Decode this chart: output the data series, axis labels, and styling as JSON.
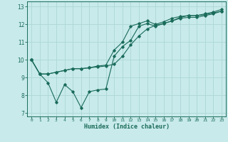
{
  "xlabel": "Humidex (Indice chaleur)",
  "ylabel": "",
  "bg_color": "#c8eaea",
  "line_color": "#1a6b5a",
  "grid_color": "#b0d8d8",
  "xlim": [
    -0.5,
    23.5
  ],
  "ylim": [
    6.8,
    13.3
  ],
  "xticks": [
    0,
    1,
    2,
    3,
    4,
    5,
    6,
    7,
    8,
    9,
    10,
    11,
    12,
    13,
    14,
    15,
    16,
    17,
    18,
    19,
    20,
    21,
    22,
    23
  ],
  "yticks": [
    7,
    8,
    9,
    10,
    11,
    12,
    13
  ],
  "line1_x": [
    0,
    1,
    2,
    3,
    4,
    5,
    6,
    7,
    8,
    9,
    10,
    11,
    12,
    13,
    14,
    15,
    16,
    17,
    18,
    19,
    20,
    21,
    22,
    23
  ],
  "line1_y": [
    10.0,
    9.2,
    9.2,
    9.3,
    9.4,
    9.5,
    9.5,
    9.55,
    9.6,
    9.65,
    9.75,
    10.2,
    10.85,
    11.35,
    11.75,
    11.95,
    12.05,
    12.2,
    12.35,
    12.4,
    12.4,
    12.5,
    12.6,
    12.75
  ],
  "line2_x": [
    0,
    1,
    2,
    3,
    4,
    5,
    6,
    7,
    8,
    9,
    10,
    11,
    12,
    13,
    14,
    15,
    16,
    17,
    18,
    19,
    20,
    21,
    22,
    23
  ],
  "line2_y": [
    10.0,
    9.2,
    8.7,
    7.6,
    8.6,
    8.2,
    7.3,
    8.2,
    8.3,
    8.35,
    10.2,
    10.75,
    11.1,
    11.9,
    12.05,
    11.9,
    12.05,
    12.2,
    12.4,
    12.5,
    12.5,
    12.55,
    12.65,
    12.75
  ],
  "line3_x": [
    0,
    1,
    2,
    3,
    4,
    5,
    6,
    7,
    8,
    9,
    10,
    11,
    12,
    13,
    14,
    15,
    16,
    17,
    18,
    19,
    20,
    21,
    22,
    23
  ],
  "line3_y": [
    10.0,
    9.2,
    9.2,
    9.3,
    9.4,
    9.5,
    9.5,
    9.55,
    9.65,
    9.7,
    10.55,
    11.0,
    11.9,
    12.05,
    12.2,
    12.0,
    12.15,
    12.35,
    12.45,
    12.5,
    12.5,
    12.6,
    12.7,
    12.85
  ]
}
